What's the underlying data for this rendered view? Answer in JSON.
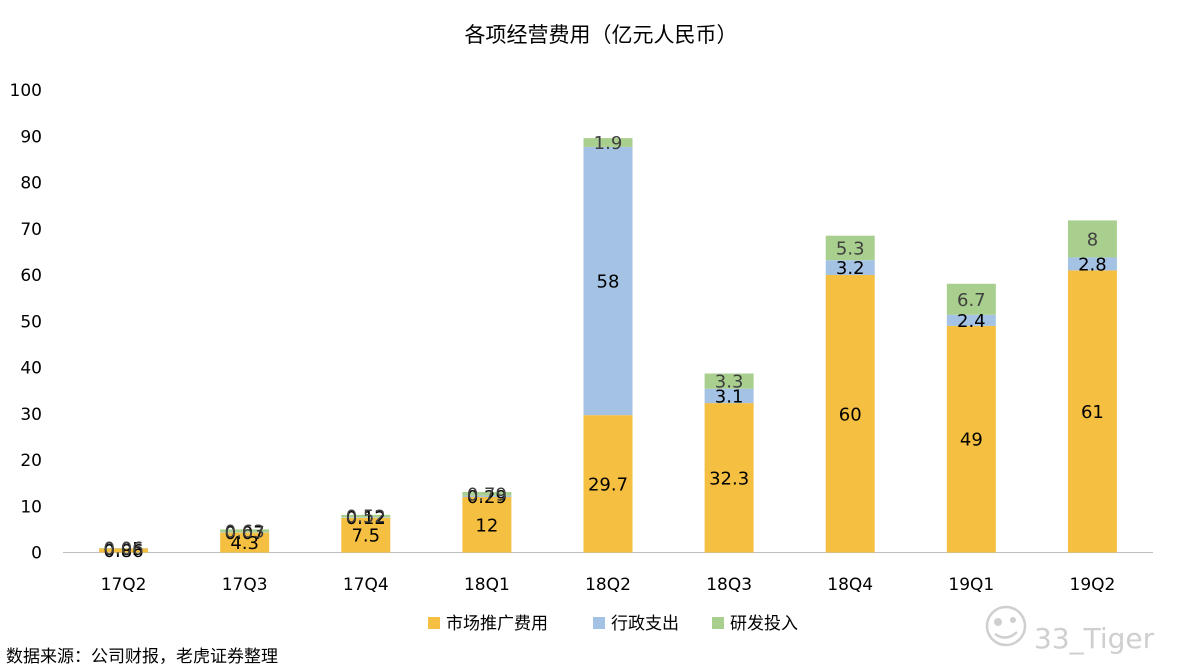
{
  "chart_data": {
    "type": "bar",
    "stacked": true,
    "title": "各项经营费用（亿元人民币）",
    "xlabel": "",
    "ylabel": "",
    "categories": [
      "17Q2",
      "17Q3",
      "17Q4",
      "18Q1",
      "18Q2",
      "18Q3",
      "18Q4",
      "19Q1",
      "19Q2"
    ],
    "ylim": [
      0,
      100
    ],
    "yticks": [
      0,
      10,
      20,
      30,
      40,
      50,
      60,
      70,
      80,
      90,
      100
    ],
    "grid": false,
    "legend_position": "bottom",
    "series": [
      {
        "name": "市场推广费用",
        "color": "#F5BF41",
        "values": [
          0.86,
          4.3,
          7.5,
          12,
          29.7,
          32.3,
          60,
          49,
          61
        ],
        "labels": [
          "0.86",
          "4.3",
          "7.5",
          "12",
          "29.7",
          "32.3",
          "60",
          "49",
          "61"
        ]
      },
      {
        "name": "行政支出",
        "color": "#A4C2E4",
        "values": [
          0.05,
          0.07,
          0.12,
          0.29,
          58,
          3.1,
          3.2,
          2.4,
          2.8
        ],
        "labels": [
          "0.05",
          "0.07",
          "0.12",
          "0.29",
          "58",
          "3.1",
          "3.2",
          "2.4",
          "2.8"
        ]
      },
      {
        "name": "研发投入",
        "color": "#A9CF8E",
        "values": [
          0.06,
          0.63,
          0.52,
          0.79,
          1.9,
          3.3,
          5.3,
          6.7,
          8
        ],
        "labels": [
          "0.06",
          "0.63",
          "0.52",
          "0.79",
          "1.9",
          "3.3",
          "5.3",
          "6.7",
          "8"
        ]
      }
    ]
  },
  "footer": {
    "source": "数据来源：公司财报，老虎证券整理",
    "watermark": "33_Tiger"
  },
  "colors": {
    "axis": "#bfbfbf",
    "watermark": "#cfcfcf"
  }
}
